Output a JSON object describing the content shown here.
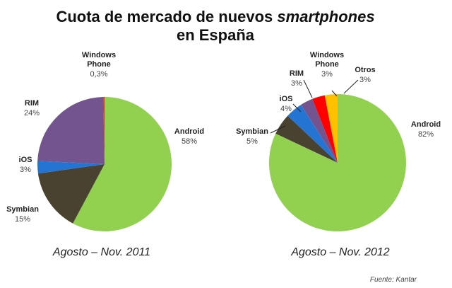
{
  "title": {
    "part1": "Cuota de mercado de nuevos ",
    "part_em": "smartphones",
    "line2": "en España"
  },
  "source": "Fuente: Kantar",
  "chart_data": [
    {
      "type": "pie",
      "caption": "Agosto – Nov. 2011",
      "slices": [
        {
          "name": "Android",
          "value_label": "58%",
          "value": 58,
          "color": "#92d050"
        },
        {
          "name": "Symbian",
          "value_label": "15%",
          "value": 15,
          "color": "#4a4230"
        },
        {
          "name": "iOS",
          "value_label": "3%",
          "value": 3,
          "color": "#2475d3"
        },
        {
          "name": "RIM",
          "value_label": "24%",
          "value": 24,
          "color": "#73548f"
        },
        {
          "name": "Windows Phone",
          "value_label": "0,3%",
          "value": 0.3,
          "color": "#e8261c"
        }
      ]
    },
    {
      "type": "pie",
      "caption": "Agosto – Nov. 2012",
      "slices": [
        {
          "name": "Android",
          "value_label": "82%",
          "value": 82,
          "color": "#92d050"
        },
        {
          "name": "Symbian",
          "value_label": "5%",
          "value": 5,
          "color": "#4a4230"
        },
        {
          "name": "iOS",
          "value_label": "4%",
          "value": 4,
          "color": "#2475d3"
        },
        {
          "name": "RIM",
          "value_label": "3%",
          "value": 3,
          "color": "#73548f"
        },
        {
          "name": "Windows Phone",
          "value_label": "3%",
          "value": 3,
          "color": "#ff0000"
        },
        {
          "name": "Otros",
          "value_label": "3%",
          "value": 3,
          "color": "#ffc000"
        }
      ]
    }
  ]
}
